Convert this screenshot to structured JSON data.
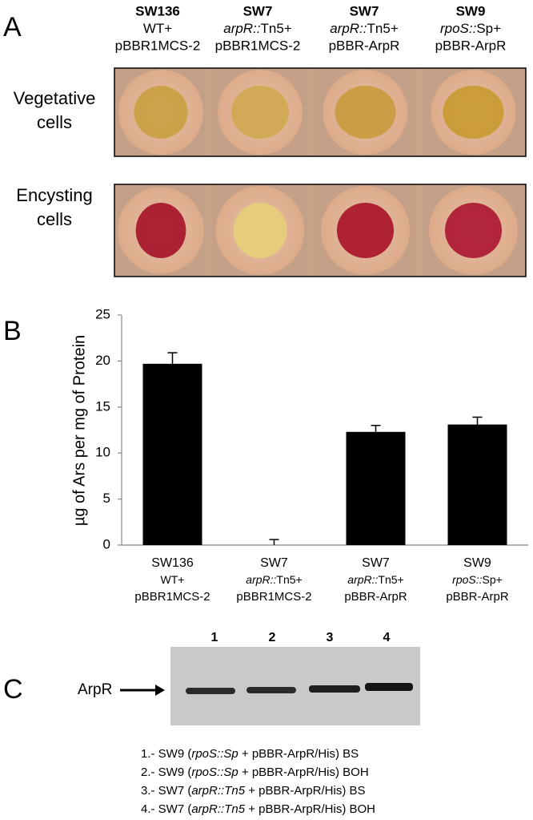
{
  "panel_labels": [
    "A",
    "B",
    "C"
  ],
  "panel_a": {
    "strains": [
      {
        "name": "SW136",
        "genotype": {
          "plain": "WT+"
        },
        "plasmid": "pBBR1MCS-2"
      },
      {
        "name": "SW7",
        "genotype": {
          "italic": "arpR::",
          "plain": "Tn5+"
        },
        "plasmid": "pBBR1MCS-2"
      },
      {
        "name": "SW7",
        "genotype": {
          "italic": "arpR::",
          "plain": "Tn5+"
        },
        "plasmid": "pBBR-ArpR"
      },
      {
        "name": "SW9",
        "genotype": {
          "italic": "rpoS::",
          "plain": "Sp+"
        },
        "plasmid": "pBBR-ArpR"
      }
    ],
    "rows": [
      [
        "Vegetative",
        "cells"
      ],
      [
        "Encysting",
        "cells"
      ]
    ]
  },
  "chart_data": {
    "type": "bar",
    "ylabel": "µg of Ars per mg of  Protein",
    "categories": [
      "SW136",
      "SW7",
      "SW7",
      "SW9"
    ],
    "category_genotypes": [
      {
        "plain": "WT+"
      },
      {
        "italic": "arpR::",
        "plain": "Tn5+"
      },
      {
        "italic": "arpR::",
        "plain": "Tn5+"
      },
      {
        "italic": "rpoS::",
        "plain": "Sp+"
      }
    ],
    "category_plasmids": [
      "pBBR1MCS-2",
      "pBBR1MCS-2",
      "pBBR-ArpR",
      "pBBR-ArpR"
    ],
    "values": [
      19.7,
      0,
      12.3,
      13.1
    ],
    "errors": [
      1.2,
      0.6,
      0.7,
      0.8
    ],
    "color": "#000000",
    "ylim": [
      0,
      25
    ],
    "yticks": [
      0,
      5,
      10,
      15,
      20,
      25
    ]
  },
  "panel_c": {
    "lanes": [
      "1",
      "2",
      "3",
      "4"
    ],
    "band_label": "ArpR",
    "legend": [
      [
        "1.- SW9 (",
        "rpoS::Sp",
        " + pBBR-ArpR/His) BS"
      ],
      [
        "2.- SW9 (",
        "rpoS::Sp",
        " + pBBR-ArpR/His) BOH"
      ],
      [
        "3.- SW7 (",
        "arpR::Tn5",
        " + pBBR-ArpR/His) BS"
      ],
      [
        "4.- SW7 (",
        "arpR::Tn5",
        " + pBBR-ArpR/His) BOH"
      ]
    ]
  }
}
